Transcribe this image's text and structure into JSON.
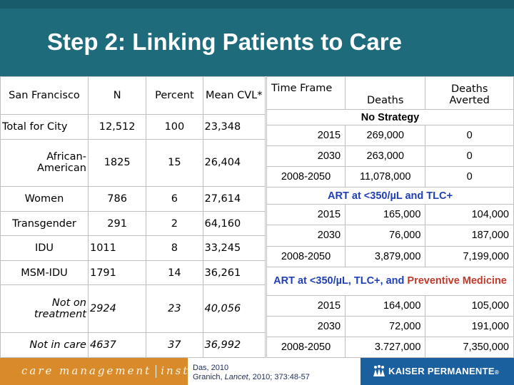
{
  "title": "Step 2:  Linking Patients to Care",
  "left_table": {
    "headers": {
      "label": "San Francisco",
      "n": "N",
      "percent": "Percent",
      "mean": "Mean CVL*"
    },
    "rows": [
      {
        "label": "Total for City",
        "n": "12,512",
        "percent": "100",
        "mean": "23,348"
      },
      {
        "label": "African-American",
        "n": "1825",
        "percent": "15",
        "mean": "26,404"
      },
      {
        "label": "Women",
        "n": "786",
        "percent": "6",
        "mean": "27,614"
      },
      {
        "label": "Transgender",
        "n": "291",
        "percent": "2",
        "mean": "64,160"
      },
      {
        "label": "IDU",
        "n": "1011",
        "percent": "8",
        "mean": "33,245"
      },
      {
        "label": "MSM-IDU",
        "n": "1791",
        "percent": "14",
        "mean": "36,261"
      },
      {
        "label": "Not on treatment",
        "n": "2924",
        "percent": "23",
        "mean": "40,056"
      },
      {
        "label": "Not in care",
        "n": "4637",
        "percent": "37",
        "mean": "36,992"
      }
    ]
  },
  "right_table": {
    "headers": {
      "time_frame": "Time Frame",
      "deaths": "Deaths",
      "deaths_averted": "Deaths Averted"
    },
    "sections": [
      {
        "title": "No Strategy",
        "rows": [
          {
            "time": "2015",
            "deaths": "269,000",
            "averted": "0"
          },
          {
            "time": "2030",
            "deaths": "263,000",
            "averted": "0"
          },
          {
            "time": "2008-2050",
            "deaths": "11,078,000",
            "averted": "0"
          }
        ]
      },
      {
        "title_parts": [
          "ART at <350/µL and ",
          "TLC+"
        ],
        "rows": [
          {
            "time": "2015",
            "deaths": "165,000",
            "averted": "104,000"
          },
          {
            "time": "2030",
            "deaths": "76,000",
            "averted": "187,000"
          },
          {
            "time": "2008-2050",
            "deaths": "3,879,000",
            "averted": "7,199,000"
          }
        ]
      },
      {
        "title_parts": [
          "ART at <350/µL, ",
          "TLC+",
          ", and ",
          "Preventive Medicine"
        ],
        "rows": [
          {
            "time": "2015",
            "deaths": "164,000",
            "averted": "105,000"
          },
          {
            "time": "2030",
            "deaths": "72,000",
            "averted": "191,000"
          },
          {
            "time": "2008-2050",
            "deaths": "3.727,000",
            "averted": "7,350,000"
          }
        ]
      }
    ]
  },
  "footer": {
    "brand_left": "care management",
    "brand_right": "institute",
    "citation_1": "Das, 2010",
    "citation_2_author": "Granich, ",
    "citation_2_journal": "Lancet",
    "citation_2_rest": ", 2010; 373:48-57",
    "kp_logo": "KAISER PERMANENTE",
    "kp_mark": "®"
  },
  "colors": {
    "header": "#1e6b7b",
    "footer_orange": "#d98a2a",
    "kp_blue": "#1a5f9e",
    "accent_blue": "#1f3fb8",
    "accent_red": "#c0392b"
  }
}
